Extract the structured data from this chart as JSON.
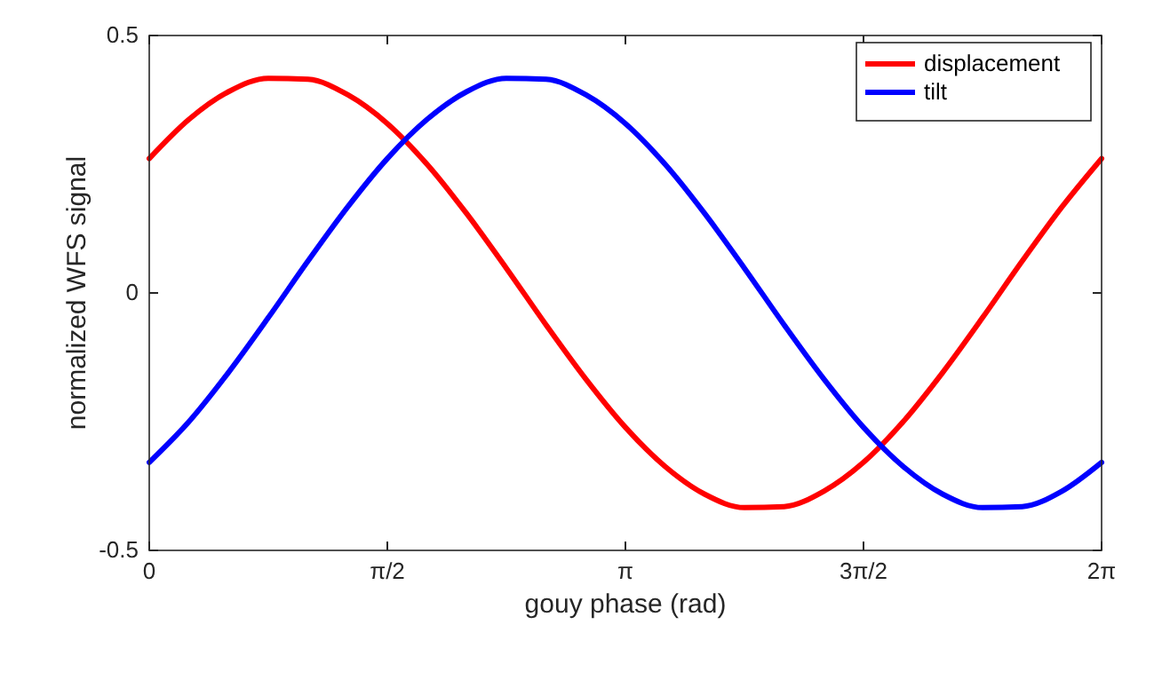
{
  "chart_data": {
    "type": "line",
    "xlabel": "gouy phase (rad)",
    "ylabel": "normalized WFS signal",
    "x": [
      0,
      0.2618,
      0.5236,
      0.7854,
      1.0472,
      1.309,
      1.5708,
      1.8326,
      2.0944,
      2.3562,
      2.618,
      2.8798,
      3.1416,
      3.4034,
      3.6652,
      3.927,
      4.1888,
      4.4506,
      4.7124,
      4.9742,
      5.236,
      5.4978,
      5.7596,
      6.0214,
      6.2832
    ],
    "series": [
      {
        "name": "displacement",
        "color": "#ff0000",
        "values": [
          0.261,
          0.337,
          0.391,
          0.417,
          0.415,
          0.385,
          0.329,
          0.25,
          0.154,
          0.048,
          -0.062,
          -0.167,
          -0.261,
          -0.337,
          -0.391,
          -0.417,
          -0.415,
          -0.385,
          -0.329,
          -0.25,
          -0.154,
          -0.048,
          0.062,
          0.167,
          0.261
        ]
      },
      {
        "name": "tilt",
        "color": "#0000ff",
        "values": [
          -0.329,
          -0.25,
          -0.154,
          -0.048,
          0.062,
          0.167,
          0.261,
          0.337,
          0.391,
          0.417,
          0.415,
          0.385,
          0.329,
          0.25,
          0.154,
          0.048,
          -0.062,
          -0.167,
          -0.261,
          -0.337,
          -0.391,
          -0.417,
          -0.415,
          -0.385,
          -0.329
        ]
      }
    ],
    "xlim": [
      0,
      6.2832
    ],
    "xticks": [
      {
        "value": 0,
        "label": "0"
      },
      {
        "value": 1.5708,
        "label": "π/2"
      },
      {
        "value": 3.1416,
        "label": "π"
      },
      {
        "value": 4.7124,
        "label": "3π/2"
      },
      {
        "value": 6.2832,
        "label": "2π"
      }
    ],
    "ylim": [
      -0.5,
      0.5
    ],
    "yticks": [
      -0.5,
      0,
      0.5
    ],
    "grid": false,
    "legend": "top right",
    "line_style": "solid",
    "marker": "none"
  }
}
